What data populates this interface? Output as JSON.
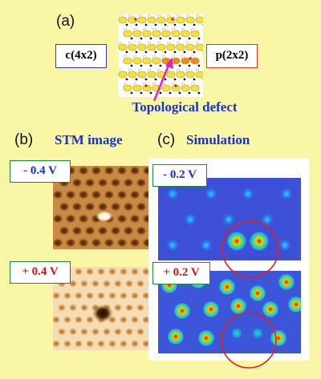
{
  "panel_a": {
    "label": "(a)",
    "left_box": "c(4x2)",
    "right_box": "p(2x2)",
    "caption": "Topological defect",
    "colors": {
      "left_border": "#3a3ad0",
      "right_border": "#d23a3a",
      "arrow": "#e020c8",
      "caption": "#1a2fd0"
    }
  },
  "panel_b": {
    "label": "(b)",
    "title": "STM image",
    "top_bias": "- 0.4 V",
    "bottom_bias": "+ 0.4 V"
  },
  "panel_c": {
    "label": "(c)",
    "title": "Simulation",
    "top_bias": "- 0.2 V",
    "bottom_bias": "+ 0.2 V"
  }
}
